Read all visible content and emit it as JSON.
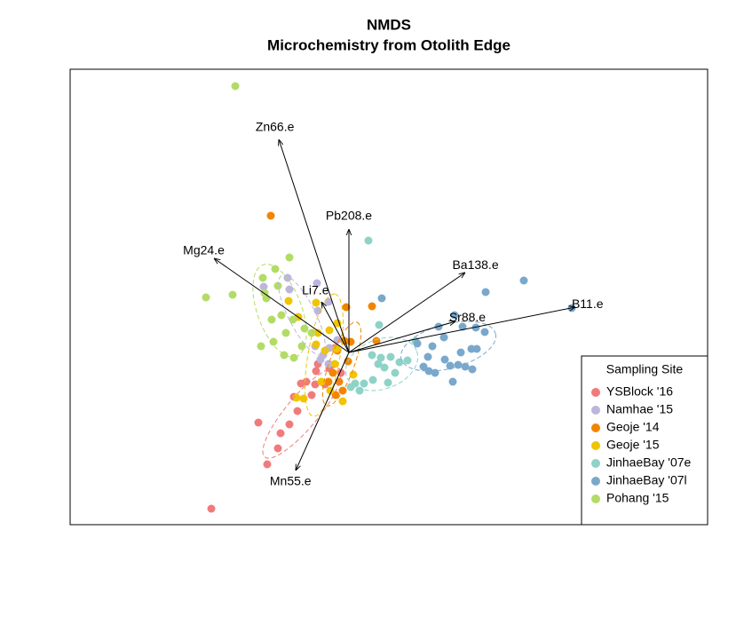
{
  "chart_data": {
    "type": "scatter",
    "title": "NMDS",
    "subtitle": "Microchemistry from Otolith Edge",
    "xlim": [
      -3.14,
      4.04
    ],
    "ylim": [
      -1.94,
      3.19
    ],
    "legend_title": "Sampling Site",
    "legend_position": "bottomright",
    "series": [
      {
        "name": "YSBlock '16",
        "color": "#f07b7b",
        "x": [
          -1.55,
          -0.92,
          -0.8,
          -0.77,
          -1.02,
          -0.67,
          -0.58,
          -0.62,
          -0.54,
          -0.48,
          -0.42,
          -0.37,
          -0.38,
          -0.35,
          -0.27,
          -0.22,
          -0.09,
          -0.16
        ],
        "y": [
          -1.76,
          -1.26,
          -1.08,
          -0.91,
          -0.79,
          -0.81,
          -0.66,
          -0.5,
          -0.35,
          -0.33,
          -0.48,
          -0.21,
          -0.36,
          -0.13,
          -0.36,
          -0.18,
          -0.23,
          0.05
        ],
        "ellipse": {
          "x": -0.53,
          "y": -0.68,
          "rx": 0.65,
          "ry": 0.18,
          "angle": 50
        }
      },
      {
        "name": "Namhae '15",
        "color": "#bcb5dc",
        "x": [
          -0.69,
          -0.67,
          -0.96,
          -0.36,
          -0.35,
          -0.22,
          -0.29,
          -0.32,
          -0.23,
          -0.38,
          -0.23,
          -0.13
        ],
        "y": [
          0.84,
          0.71,
          0.74,
          0.78,
          0.47,
          0.05,
          -0.03,
          -0.08,
          -0.13,
          0.07,
          0.57,
          0.14
        ],
        "ellipse": {
          "x": -0.53,
          "y": 0.42,
          "rx": 0.5,
          "ry": 0.15,
          "angle": -63
        }
      },
      {
        "name": "Geoje '14",
        "color": "#f28500",
        "x": [
          -0.88,
          -0.03,
          0.26,
          0.31,
          -0.05,
          -0.13,
          -0.18,
          -0.11,
          -0.07,
          -0.23,
          -0.15,
          -0.01,
          0.02
        ],
        "y": [
          1.54,
          0.51,
          0.52,
          0.13,
          0.13,
          0.02,
          -0.23,
          -0.33,
          -0.43,
          -0.33,
          -0.48,
          -0.1,
          0.12
        ],
        "ellipse": {
          "x": -0.08,
          "y": -0.13,
          "rx": 0.5,
          "ry": 0.14,
          "angle": 70
        }
      },
      {
        "name": "Geoje '15",
        "color": "#f0c400",
        "x": [
          -0.68,
          -0.57,
          -0.37,
          -0.37,
          -0.35,
          -0.22,
          -0.13,
          -0.14,
          -0.27,
          -0.21,
          -0.31,
          -0.07,
          -0.59,
          -0.51,
          -0.16,
          0.05
        ],
        "y": [
          0.58,
          0.4,
          0.56,
          0.09,
          0.22,
          0.25,
          0.33,
          0.04,
          0.02,
          -0.43,
          -0.33,
          -0.55,
          -0.51,
          -0.52,
          -0.13,
          -0.25
        ],
        "ellipse": {
          "x": -0.28,
          "y": -0.03,
          "rx": 0.7,
          "ry": 0.18,
          "angle": 80
        }
      },
      {
        "name": "JinhaeBay '07e",
        "color": "#8ed2c8",
        "x": [
          0.22,
          0.34,
          0.26,
          0.36,
          0.47,
          0.57,
          0.66,
          0.75,
          0.52,
          0.44,
          0.27,
          0.17,
          0.07,
          0.12,
          0.02,
          0.4,
          0.33
        ],
        "y": [
          1.26,
          0.31,
          -0.03,
          -0.06,
          -0.05,
          -0.11,
          -0.09,
          0.13,
          -0.23,
          -0.34,
          -0.31,
          -0.35,
          -0.35,
          -0.43,
          -0.39,
          -0.17,
          -0.13
        ],
        "ellipse": {
          "x": 0.37,
          "y": -0.13,
          "rx": 0.42,
          "ry": 0.28,
          "angle": 20
        }
      },
      {
        "name": "JinhaeBay '07l",
        "color": "#7aa8cc",
        "x": [
          0.37,
          1.97,
          1.54,
          2.51,
          1.19,
          1.01,
          1.28,
          1.43,
          1.53,
          1.07,
          0.77,
          0.94,
          1.38,
          1.44,
          1.26,
          0.89,
          1.08,
          1.14,
          1.23,
          1.31,
          1.39,
          0.84,
          0.9,
          1.17,
          0.97
        ],
        "y": [
          0.61,
          0.81,
          0.68,
          0.5,
          0.42,
          0.29,
          0.29,
          0.28,
          0.23,
          0.17,
          0.1,
          0.07,
          0.04,
          0.04,
          0.0,
          -0.05,
          -0.08,
          -0.15,
          -0.14,
          -0.16,
          -0.19,
          -0.16,
          -0.21,
          -0.33,
          -0.23
        ],
        "ellipse": {
          "x": 1.12,
          "y": 0.07,
          "rx": 0.55,
          "ry": 0.25,
          "angle": 15
        }
      },
      {
        "name": "Pohang '15",
        "color": "#b2dc66",
        "x": [
          -1.28,
          -0.67,
          -0.83,
          -0.97,
          -0.93,
          -0.8,
          -1.61,
          -1.31,
          -0.63,
          -0.5,
          -0.71,
          -0.85,
          -0.99,
          -0.73,
          -0.62,
          -0.53,
          -0.76,
          -0.87,
          -0.95,
          -0.42
        ],
        "y": [
          3.0,
          1.07,
          0.94,
          0.84,
          0.61,
          0.75,
          0.62,
          0.65,
          0.37,
          0.27,
          0.22,
          0.12,
          0.07,
          -0.03,
          -0.06,
          0.07,
          0.42,
          0.37,
          0.67,
          0.22
        ],
        "ellipse": {
          "x": -0.78,
          "y": 0.47,
          "rx": 0.55,
          "ry": 0.25,
          "angle": -70
        }
      }
    ],
    "vectors": [
      {
        "name": "Zn66.e",
        "x": -0.79,
        "y": 2.4
      },
      {
        "name": "Pb208.e",
        "x": 0,
        "y": 1.39
      },
      {
        "name": "Mg24.e",
        "x": -1.52,
        "y": 1.06
      },
      {
        "name": "Li7.e",
        "x": -0.31,
        "y": 0.57
      },
      {
        "name": "Ba138.e",
        "x": 1.31,
        "y": 0.9
      },
      {
        "name": "Sr88.e",
        "x": 1.2,
        "y": 0.35
      },
      {
        "name": "B11.e",
        "x": 2.55,
        "y": 0.51
      },
      {
        "name": "Mn55.e",
        "x": -0.6,
        "y": -1.33
      }
    ]
  }
}
